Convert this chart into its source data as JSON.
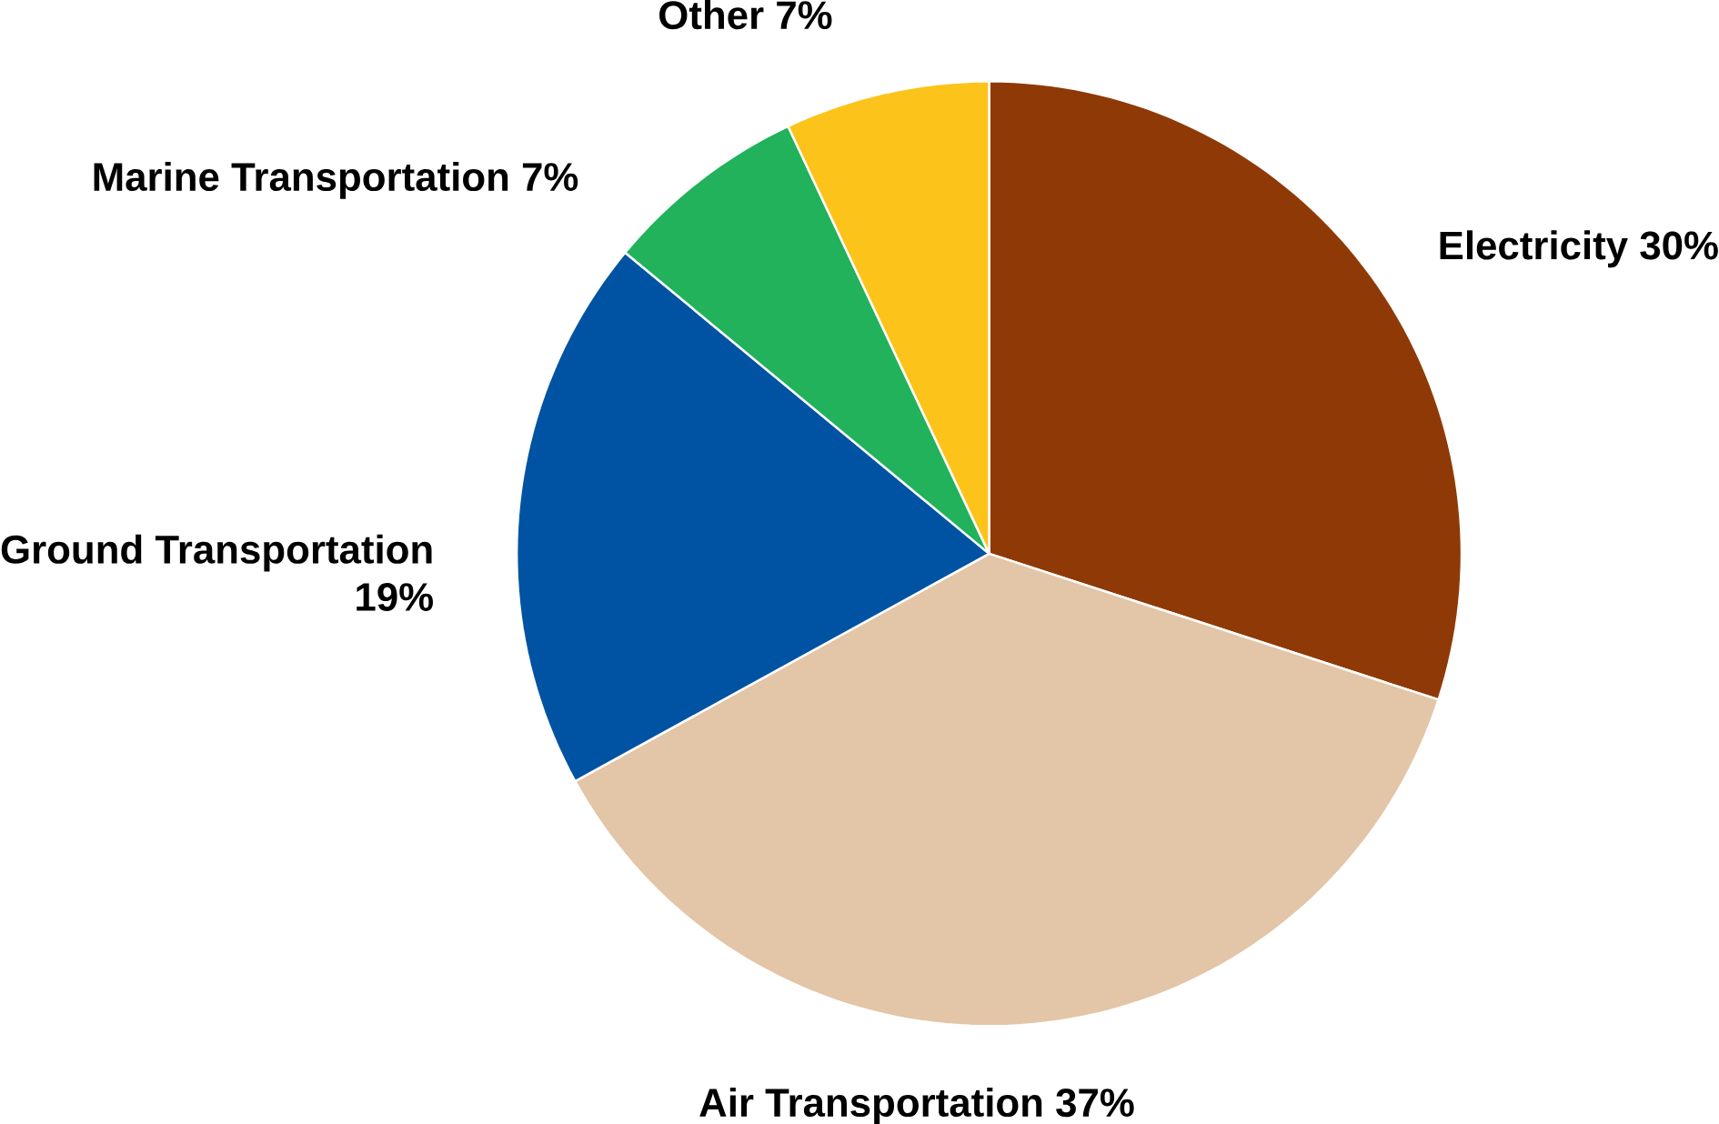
{
  "chart_data": {
    "type": "pie",
    "categories": [
      "Electricity",
      "Air Transportation",
      "Ground Transportation",
      "Marine Transportation",
      "Other"
    ],
    "values": [
      30,
      37,
      19,
      7,
      7
    ],
    "value_labels": [
      "30%",
      "37%",
      "19%",
      "7%",
      "7%"
    ],
    "colors": [
      "#8f3a06",
      "#e3c5a7",
      "#0053a2",
      "#21b25b",
      "#fcc31a"
    ]
  }
}
